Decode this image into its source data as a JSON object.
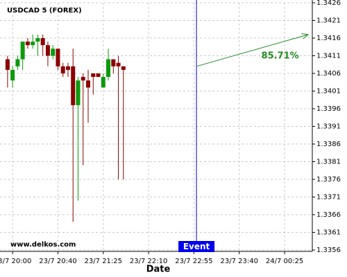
{
  "chart_data": {
    "type": "candlestick",
    "title": "USDCAD 5 (FOREX)",
    "x_label": "Date",
    "watermark": "www.delkos.com",
    "up_color": "#0a9a0a",
    "down_color": "#8b0000",
    "grid": true,
    "x": [
      0,
      1,
      2,
      3,
      4,
      5,
      6,
      7,
      8,
      9,
      10,
      11,
      12,
      13,
      14,
      15,
      16,
      17,
      18,
      19,
      20,
      21,
      22,
      23
    ],
    "open": [
      1.341,
      1.3404,
      1.3408,
      1.341,
      1.3415,
      1.3414,
      1.3415,
      1.3416,
      1.3414,
      1.3411,
      1.3413,
      1.3408,
      1.3408,
      1.3408,
      1.3397,
      1.3405,
      1.3404,
      1.3406,
      1.3406,
      1.3402,
      1.3405,
      1.341,
      1.3409,
      1.3408
    ],
    "high": [
      1.3411,
      1.3408,
      1.3411,
      1.3415,
      1.3416,
      1.3417,
      1.3417,
      1.3417,
      1.3415,
      1.3414,
      1.3413,
      1.3409,
      1.3409,
      1.3413,
      1.3405,
      1.3406,
      1.3407,
      1.3406,
      1.3406,
      1.3406,
      1.3413,
      1.341,
      1.3411,
      1.3408
    ],
    "low": [
      1.3402,
      1.3402,
      1.3407,
      1.3407,
      1.3413,
      1.3413,
      1.3411,
      1.3411,
      1.3408,
      1.341,
      1.3407,
      1.3405,
      1.3405,
      1.3364,
      1.337,
      1.338,
      1.3392,
      1.34,
      1.3405,
      1.3402,
      1.3404,
      1.3406,
      1.3376,
      1.3376
    ],
    "close": [
      1.3407,
      1.3407,
      1.341,
      1.3415,
      1.3414,
      1.3415,
      1.3416,
      1.3414,
      1.3411,
      1.3413,
      1.3408,
      1.3406,
      1.3407,
      1.3397,
      1.3404,
      1.3404,
      1.3402,
      1.3405,
      1.3405,
      1.3405,
      1.341,
      1.3408,
      1.3408,
      1.3407
    ],
    "xlim": [
      -1.5,
      60.5
    ],
    "xticks": [
      {
        "value": 1,
        "label": "23/7 20:00"
      },
      {
        "value": 10,
        "label": "23/7 20:40"
      },
      {
        "value": 19,
        "label": "23/7 21:25"
      },
      {
        "value": 28,
        "label": "23/7 22:10"
      },
      {
        "value": 37,
        "label": "23/7 22:55"
      },
      {
        "value": 46,
        "label": "23/7 23:40"
      },
      {
        "value": 55,
        "label": "24/7 00:25"
      }
    ],
    "ylim": [
      1.3356,
      1.3426
    ],
    "yticks": [
      1.3356,
      1.3361,
      1.3366,
      1.3371,
      1.3376,
      1.3381,
      1.3386,
      1.3391,
      1.3396,
      1.3401,
      1.3406,
      1.3411,
      1.3416,
      1.3421,
      1.3426
    ],
    "event": {
      "label": "Event",
      "x": 37.5,
      "color": "#0000ee"
    },
    "prediction": {
      "label": "85.71%",
      "x": [
        37.5,
        59.7
      ],
      "y": [
        1.3408,
        1.3417
      ],
      "color": "#228b22"
    }
  }
}
